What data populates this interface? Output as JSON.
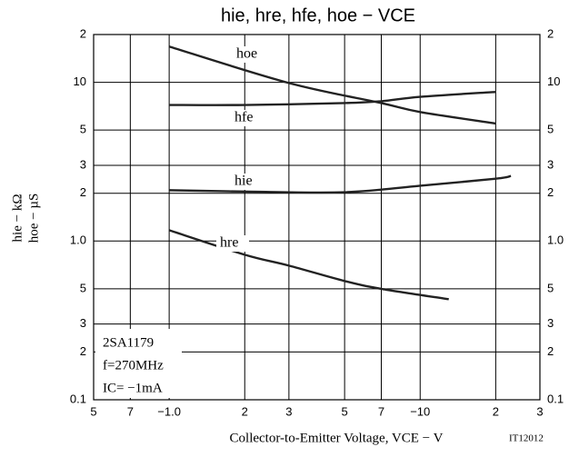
{
  "chart_data": {
    "type": "line",
    "title": "hie, hre, hfe, hoe − VCE",
    "x_label": "Collector-to-Emitter Voltage, VCE − V",
    "y_label": [
      "hie − kΩ",
      "hoe − µS"
    ],
    "code": "IT12012",
    "annotations": [
      "2SA1179",
      "f=270MHz",
      "IC= −1mA"
    ],
    "log_x": true,
    "log_y": true,
    "grid": true,
    "xlim": [
      0.5,
      30
    ],
    "xticks": [
      {
        "value": 0.5,
        "label": "5"
      },
      {
        "value": 0.7,
        "label": "7"
      },
      {
        "value": 1,
        "label": "−1.0"
      },
      2,
      3,
      5,
      7,
      {
        "value": 10,
        "label": "−10"
      },
      {
        "value": 20,
        "label": "2"
      },
      {
        "value": 30,
        "label": "3"
      }
    ],
    "ylim": [
      0.1,
      20
    ],
    "yticks": [
      0.1,
      {
        "value": 0.2,
        "label": "2"
      },
      {
        "value": 0.3,
        "label": "3"
      },
      {
        "value": 0.5,
        "label": "5"
      },
      {
        "value": 1,
        "label": "1.0"
      },
      2,
      3,
      5,
      10,
      {
        "value": 20,
        "label": "2"
      }
    ],
    "series": [
      {
        "name": "hoe",
        "color": "#222222",
        "x": [
          1,
          3,
          7,
          10,
          20
        ],
        "values": [
          16.8,
          9.9,
          7.4,
          6.5,
          5.5
        ]
      },
      {
        "name": "hfe",
        "color": "#222222",
        "x": [
          1,
          2,
          5,
          7,
          10,
          20
        ],
        "values": [
          7.2,
          7.2,
          7.4,
          7.6,
          8.1,
          8.7
        ]
      },
      {
        "name": "hie",
        "color": "#222222",
        "x": [
          1,
          2,
          5,
          10,
          20,
          23
        ],
        "values": [
          2.09,
          2.05,
          2.03,
          2.23,
          2.47,
          2.57
        ]
      },
      {
        "name": "hre",
        "color": "#222222",
        "x": [
          1,
          2,
          3,
          5,
          7,
          13
        ],
        "values": [
          1.17,
          0.82,
          0.7,
          0.56,
          0.5,
          0.43
        ]
      }
    ]
  }
}
